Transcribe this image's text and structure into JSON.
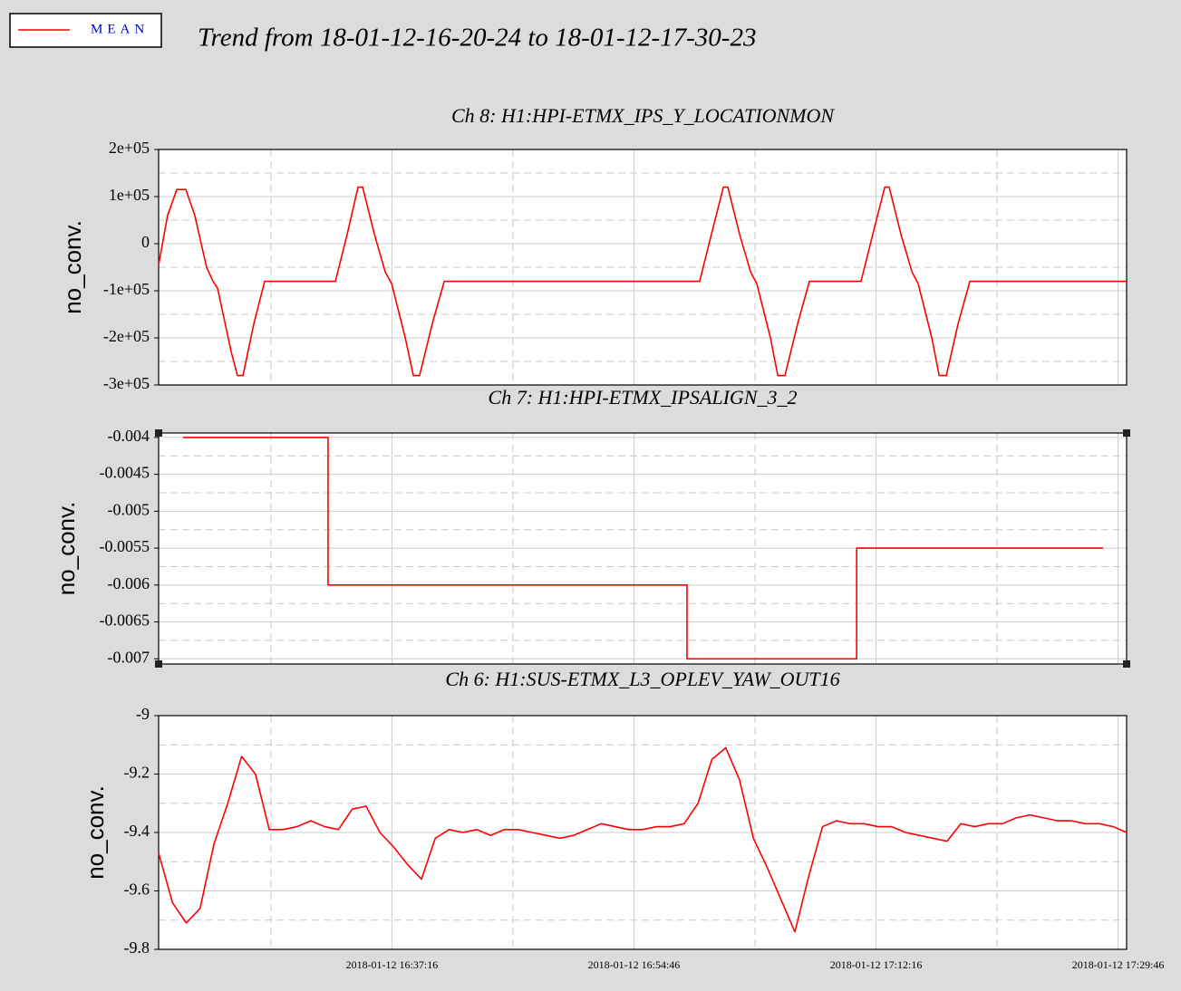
{
  "title": "Trend from 18-01-12-16-20-24 to 18-01-12-17-30-23",
  "chart_data": [
    {
      "type": "line",
      "title": "Ch 8: H1:HPI-ETMX_IPS_Y_LOCATIONMON",
      "ylabel": "no_conv.",
      "xlim": [
        "2018-01-12 16:20:24",
        "2018-01-12 17:30:23"
      ],
      "xticks": [
        "2018-01-12 16:37:16",
        "2018-01-12 16:54:46",
        "2018-01-12 17:12:16",
        "2018-01-12 17:29:46"
      ],
      "ylim": [
        -300000,
        200000
      ],
      "yticks": [
        {
          "value": -300000,
          "label": "-3e+05"
        },
        {
          "value": -200000,
          "label": "-2e+05"
        },
        {
          "value": -100000,
          "label": "-1e+05"
        },
        0,
        {
          "value": 100000,
          "label": "1e+05"
        },
        {
          "value": 200000,
          "label": "2e+05"
        }
      ],
      "grid": true,
      "series": [
        {
          "name": "MEAN",
          "color": "#ff0000",
          "x": [
            "2018-01-12 16:20:24",
            "2018-01-12 16:21:03",
            "2018-01-12 16:21:43",
            "2018-01-12 16:22:22",
            "2018-01-12 16:23:01",
            "2018-01-12 16:23:52",
            "2018-01-12 16:24:20",
            "2018-01-12 16:24:40",
            "2018-01-12 16:25:39",
            "2018-01-12 16:26:06",
            "2018-01-12 16:26:30",
            "2018-01-12 16:27:17",
            "2018-01-12 16:28:04",
            "2018-01-12 16:33:11",
            "2018-01-12 16:34:02",
            "2018-01-12 16:34:49",
            "2018-01-12 16:35:09",
            "2018-01-12 16:36:00",
            "2018-01-12 16:36:47",
            "2018-01-12 16:37:15",
            "2018-01-12 16:38:14",
            "2018-01-12 16:38:49",
            "2018-01-12 16:39:16",
            "2018-01-12 16:40:11",
            "2018-01-12 16:41:03",
            "2018-01-12 16:59:31",
            "2018-01-12 17:00:22",
            "2018-01-12 17:01:14",
            "2018-01-12 17:01:33",
            "2018-01-12 17:02:24",
            "2018-01-12 17:03:12",
            "2018-01-12 17:03:39",
            "2018-01-12 17:04:38",
            "2018-01-12 17:05:10",
            "2018-01-12 17:05:41",
            "2018-01-12 17:06:36",
            "2018-01-12 17:07:27",
            "2018-01-12 17:11:11",
            "2018-01-12 17:12:02",
            "2018-01-12 17:12:54",
            "2018-01-12 17:13:13",
            "2018-01-12 17:14:04",
            "2018-01-12 17:14:52",
            "2018-01-12 17:15:19",
            "2018-01-12 17:16:18",
            "2018-01-12 17:16:50",
            "2018-01-12 17:17:21",
            "2018-01-12 17:18:12",
            "2018-01-12 17:19:03",
            "2018-01-12 17:30:23"
          ],
          "values": [
            -45000,
            60000,
            115000,
            115000,
            60000,
            -50000,
            -80000,
            -95000,
            -230000,
            -280000,
            -280000,
            -170000,
            -80000,
            -80000,
            20000,
            120000,
            120000,
            20000,
            -60000,
            -85000,
            -200000,
            -280000,
            -280000,
            -170000,
            -80000,
            -80000,
            20000,
            120000,
            120000,
            20000,
            -60000,
            -85000,
            -200000,
            -280000,
            -280000,
            -170000,
            -80000,
            -80000,
            20000,
            120000,
            120000,
            20000,
            -60000,
            -85000,
            -200000,
            -280000,
            -280000,
            -170000,
            -80000,
            -80000
          ]
        }
      ]
    },
    {
      "type": "line",
      "title": "Ch 7: H1:HPI-ETMX_IPSALIGN_3_2",
      "ylabel": "no_conv.",
      "xlim": [
        "2018-01-12 16:20:24",
        "2018-01-12 17:30:23"
      ],
      "xticks": [
        "2018-01-12 16:37:16",
        "2018-01-12 16:54:46",
        "2018-01-12 17:12:16",
        "2018-01-12 17:29:46"
      ],
      "ylim": [
        -0.00707,
        -0.00394
      ],
      "yticks": [
        -0.007,
        -0.0065,
        -0.006,
        -0.0055,
        -0.005,
        -0.0045,
        -0.004
      ],
      "grid": true,
      "series": [
        {
          "name": "MEAN",
          "color": "#ff0000",
          "x": [
            "2018-01-12 16:22:10",
            "2018-01-12 16:32:39",
            "2018-01-12 16:32:39",
            "2018-01-12 16:58:36",
            "2018-01-12 16:58:36",
            "2018-01-12 17:10:52",
            "2018-01-12 17:10:52",
            "2018-01-12 17:28:41"
          ],
          "values": [
            -0.004,
            -0.004,
            -0.006,
            -0.006,
            -0.007,
            -0.007,
            -0.0055,
            -0.0055
          ]
        }
      ]
    },
    {
      "type": "line",
      "title": "Ch 6: H1:SUS-ETMX_L3_OPLEV_YAW_OUT16",
      "ylabel": "no_conv.",
      "xlim": [
        "2018-01-12 16:20:24",
        "2018-01-12 17:30:23"
      ],
      "xticks": [
        "2018-01-12 16:37:16",
        "2018-01-12 16:54:46",
        "2018-01-12 17:12:16",
        "2018-01-12 17:29:46"
      ],
      "ylim": [
        -9.8,
        -9
      ],
      "yticks": [
        -9.8,
        -9.6,
        -9.4,
        -9.2,
        -9
      ],
      "grid": true,
      "series": [
        {
          "name": "MEAN",
          "color": "#ff0000",
          "x": [
            "2018-01-12 16:20:24",
            "2018-01-12 16:21:24",
            "2018-01-12 16:22:24",
            "2018-01-12 16:23:24",
            "2018-01-12 16:24:24",
            "2018-01-12 16:25:24",
            "2018-01-12 16:26:24",
            "2018-01-12 16:27:24",
            "2018-01-12 16:28:24",
            "2018-01-12 16:29:24",
            "2018-01-12 16:30:24",
            "2018-01-12 16:31:24",
            "2018-01-12 16:32:24",
            "2018-01-12 16:33:24",
            "2018-01-12 16:34:24",
            "2018-01-12 16:35:24",
            "2018-01-12 16:36:24",
            "2018-01-12 16:37:24",
            "2018-01-12 16:38:24",
            "2018-01-12 16:39:24",
            "2018-01-12 16:40:24",
            "2018-01-12 16:41:24",
            "2018-01-12 16:42:24",
            "2018-01-12 16:43:24",
            "2018-01-12 16:44:24",
            "2018-01-12 16:45:24",
            "2018-01-12 16:46:24",
            "2018-01-12 16:47:24",
            "2018-01-12 16:48:24",
            "2018-01-12 16:49:24",
            "2018-01-12 16:50:24",
            "2018-01-12 16:51:24",
            "2018-01-12 16:52:24",
            "2018-01-12 16:53:24",
            "2018-01-12 16:54:24",
            "2018-01-12 16:55:24",
            "2018-01-12 16:56:24",
            "2018-01-12 16:57:24",
            "2018-01-12 16:58:24",
            "2018-01-12 16:59:24",
            "2018-01-12 17:00:24",
            "2018-01-12 17:01:24",
            "2018-01-12 17:02:24",
            "2018-01-12 17:03:24",
            "2018-01-12 17:04:24",
            "2018-01-12 17:05:24",
            "2018-01-12 17:06:24",
            "2018-01-12 17:07:24",
            "2018-01-12 17:08:24",
            "2018-01-12 17:09:24",
            "2018-01-12 17:10:24",
            "2018-01-12 17:11:24",
            "2018-01-12 17:12:24",
            "2018-01-12 17:13:24",
            "2018-01-12 17:14:24",
            "2018-01-12 17:15:24",
            "2018-01-12 17:16:24",
            "2018-01-12 17:17:24",
            "2018-01-12 17:18:24",
            "2018-01-12 17:19:24",
            "2018-01-12 17:20:24",
            "2018-01-12 17:21:24",
            "2018-01-12 17:22:24",
            "2018-01-12 17:23:24",
            "2018-01-12 17:24:24",
            "2018-01-12 17:25:24",
            "2018-01-12 17:26:24",
            "2018-01-12 17:27:24",
            "2018-01-12 17:28:24",
            "2018-01-12 17:29:24",
            "2018-01-12 17:30:23"
          ],
          "values": [
            -9.47,
            -9.64,
            -9.71,
            -9.66,
            -9.44,
            -9.3,
            -9.14,
            -9.2,
            -9.39,
            -9.39,
            -9.38,
            -9.36,
            -9.38,
            -9.39,
            -9.32,
            -9.31,
            -9.4,
            -9.45,
            -9.51,
            -9.56,
            -9.42,
            -9.39,
            -9.4,
            -9.39,
            -9.41,
            -9.39,
            -9.39,
            -9.4,
            -9.41,
            -9.42,
            -9.41,
            -9.39,
            -9.37,
            -9.38,
            -9.39,
            -9.39,
            -9.38,
            -9.38,
            -9.37,
            -9.3,
            -9.15,
            -9.11,
            -9.22,
            -9.42,
            -9.52,
            -9.63,
            -9.74,
            -9.55,
            -9.38,
            -9.36,
            -9.37,
            -9.37,
            -9.38,
            -9.38,
            -9.4,
            -9.41,
            -9.42,
            -9.43,
            -9.37,
            -9.38,
            -9.37,
            -9.37,
            -9.35,
            -9.34,
            -9.35,
            -9.36,
            -9.36,
            -9.37,
            -9.37,
            -9.38,
            -9.4
          ]
        }
      ]
    }
  ]
}
